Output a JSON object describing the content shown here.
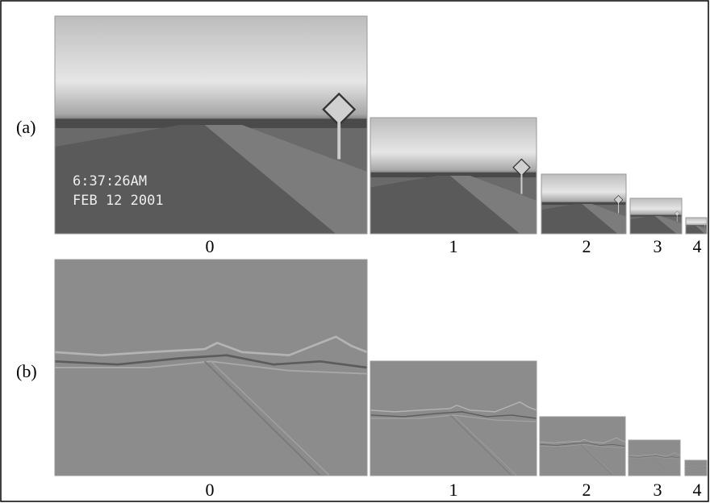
{
  "rows": [
    {
      "label": "(a)",
      "levels": [
        "0",
        "1",
        "2",
        "3",
        "4"
      ],
      "timestamp": [
        "6:37:26AM",
        "FEB 12 2001"
      ]
    },
    {
      "label": "(b)",
      "levels": [
        "0",
        "1",
        "2",
        "3",
        "4"
      ]
    }
  ]
}
